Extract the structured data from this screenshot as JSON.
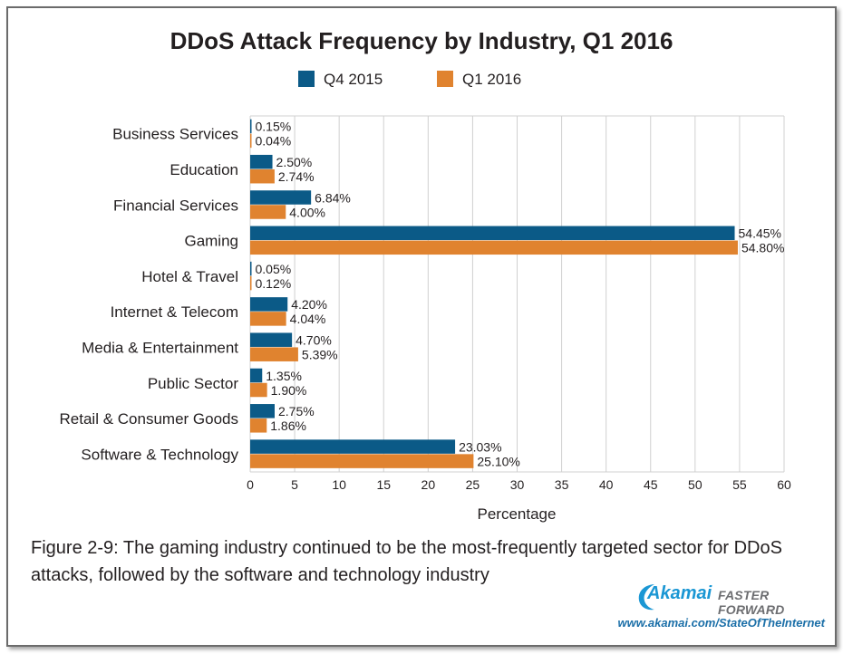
{
  "chart_data": {
    "type": "bar",
    "orientation": "horizontal",
    "title": "DDoS Attack Frequency by Industry, Q1 2016",
    "xlabel": "Percentage",
    "ylabel": "",
    "xlim": [
      0,
      60
    ],
    "xticks": [
      0,
      5,
      10,
      15,
      20,
      25,
      30,
      35,
      40,
      45,
      50,
      55,
      60
    ],
    "grid": true,
    "legend_position": "top-center",
    "categories": [
      "Business Services",
      "Education",
      "Financial Services",
      "Gaming",
      "Hotel & Travel",
      "Internet & Telecom",
      "Media & Entertainment",
      "Public Sector",
      "Retail & Consumer Goods",
      "Software & Technology"
    ],
    "series": [
      {
        "name": "Q4 2015",
        "color": "#0b5a87",
        "values": [
          0.15,
          2.5,
          6.84,
          54.45,
          0.05,
          4.2,
          4.7,
          1.35,
          2.75,
          23.03
        ],
        "labels": [
          "0.15%",
          "2.50%",
          "6.84%",
          "54.45%",
          "0.05%",
          "4.20%",
          "4.70%",
          "1.35%",
          "2.75%",
          "23.03%"
        ]
      },
      {
        "name": "Q1 2016",
        "color": "#e0832f",
        "values": [
          0.04,
          2.74,
          4.0,
          54.8,
          0.12,
          4.04,
          5.39,
          1.9,
          1.86,
          25.1
        ],
        "labels": [
          "0.04%",
          "2.74%",
          "4.00%",
          "54.80%",
          "0.12%",
          "4.04%",
          "5.39%",
          "1.90%",
          "1.86%",
          "25.10%"
        ]
      }
    ]
  },
  "caption": "Figure 2-9: The gaming industry continued to be the most-frequently targeted sector for DDoS attacks, followed by the software and technology industry",
  "brand": {
    "logo": "Akamai",
    "tagline": "FASTER FORWARD",
    "url": "www.akamai.com/StateOfTheInternet"
  },
  "colors": {
    "grid": "#d0d0d0",
    "text": "#231f20",
    "frame": "#6b6b6b"
  }
}
